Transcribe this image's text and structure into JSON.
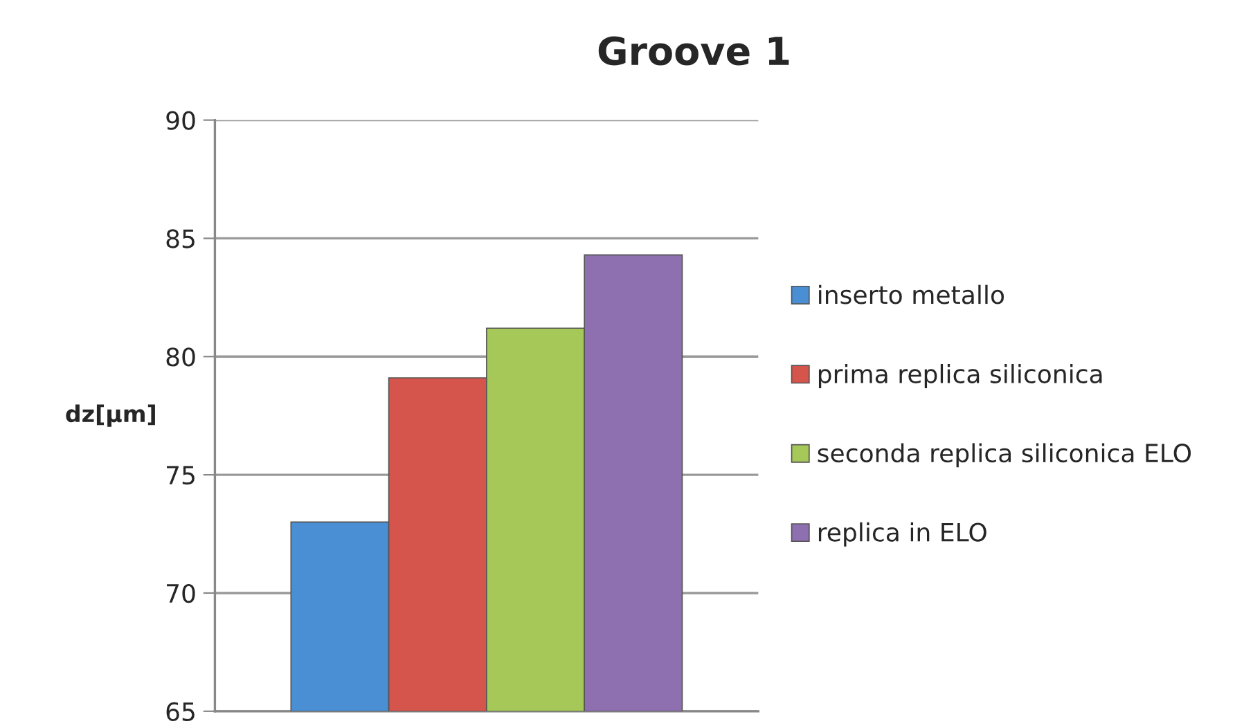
{
  "chart_data": {
    "type": "bar",
    "title": "Groove 1",
    "ylabel": "dz[µm]",
    "categories": [
      null
    ],
    "series": [
      {
        "name": "inserto metallo",
        "color": "#4a8fd4",
        "values": [
          73.0
        ]
      },
      {
        "name": "prima replica siliconica",
        "color": "#d5544b",
        "values": [
          79.1
        ]
      },
      {
        "name": "seconda replica siliconica ELO",
        "color": "#a6c858",
        "values": [
          81.2
        ]
      },
      {
        "name": "replica in ELO",
        "color": "#8e6fb0",
        "values": [
          84.3
        ]
      }
    ],
    "ylim": [
      65,
      90
    ],
    "yticks": [
      65,
      70,
      75,
      80,
      85,
      90
    ],
    "grid": "y",
    "legend": "right"
  }
}
